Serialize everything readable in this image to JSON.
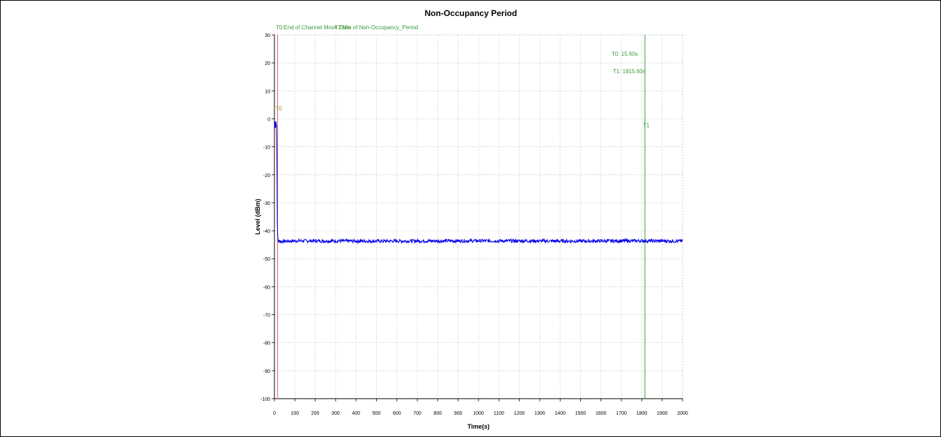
{
  "chart_data": {
    "type": "line",
    "title": "Non-Occupancy Period",
    "xlabel": "Time(s)",
    "ylabel": "Level (dBm)",
    "xlim": [
      0,
      2000
    ],
    "ylim": [
      -100,
      30
    ],
    "xticks": [
      0,
      100,
      200,
      300,
      400,
      500,
      600,
      700,
      800,
      900,
      1000,
      1100,
      1200,
      1300,
      1400,
      1500,
      1600,
      1700,
      1800,
      1900,
      2000
    ],
    "yticks": [
      30,
      20,
      10,
      0,
      -10,
      -20,
      -30,
      -40,
      -50,
      -60,
      -70,
      -80,
      -90,
      -100
    ],
    "grid": true,
    "legend": [
      {
        "label": "T0:End of Channel Move Time",
        "color": "#3a9a3a"
      },
      {
        "label": "T1:Min of Non-Occupancy_Period",
        "color": "#3a9a3a"
      }
    ],
    "series": [
      {
        "color": "#0000ee",
        "x": [
          0,
          5,
          10,
          12,
          14,
          16,
          18,
          20,
          25,
          30,
          100,
          500,
          1000,
          1500,
          1800,
          2000
        ],
        "y": [
          -2,
          -3,
          -2,
          -12,
          -37,
          -42,
          -43.5,
          -43.8,
          -43.5,
          -43.8,
          -43.6,
          -43.7,
          -43.6,
          -43.7,
          -43.6,
          -43.7
        ]
      }
    ],
    "markers": [
      {
        "name": "T0",
        "x": 15.6,
        "color": "#e06060"
      },
      {
        "name": "T1",
        "x": 1815.6,
        "color": "#3a9a3a"
      }
    ],
    "annotations": [
      "T0: 15.60s",
      "T1: 1815.60s"
    ]
  }
}
